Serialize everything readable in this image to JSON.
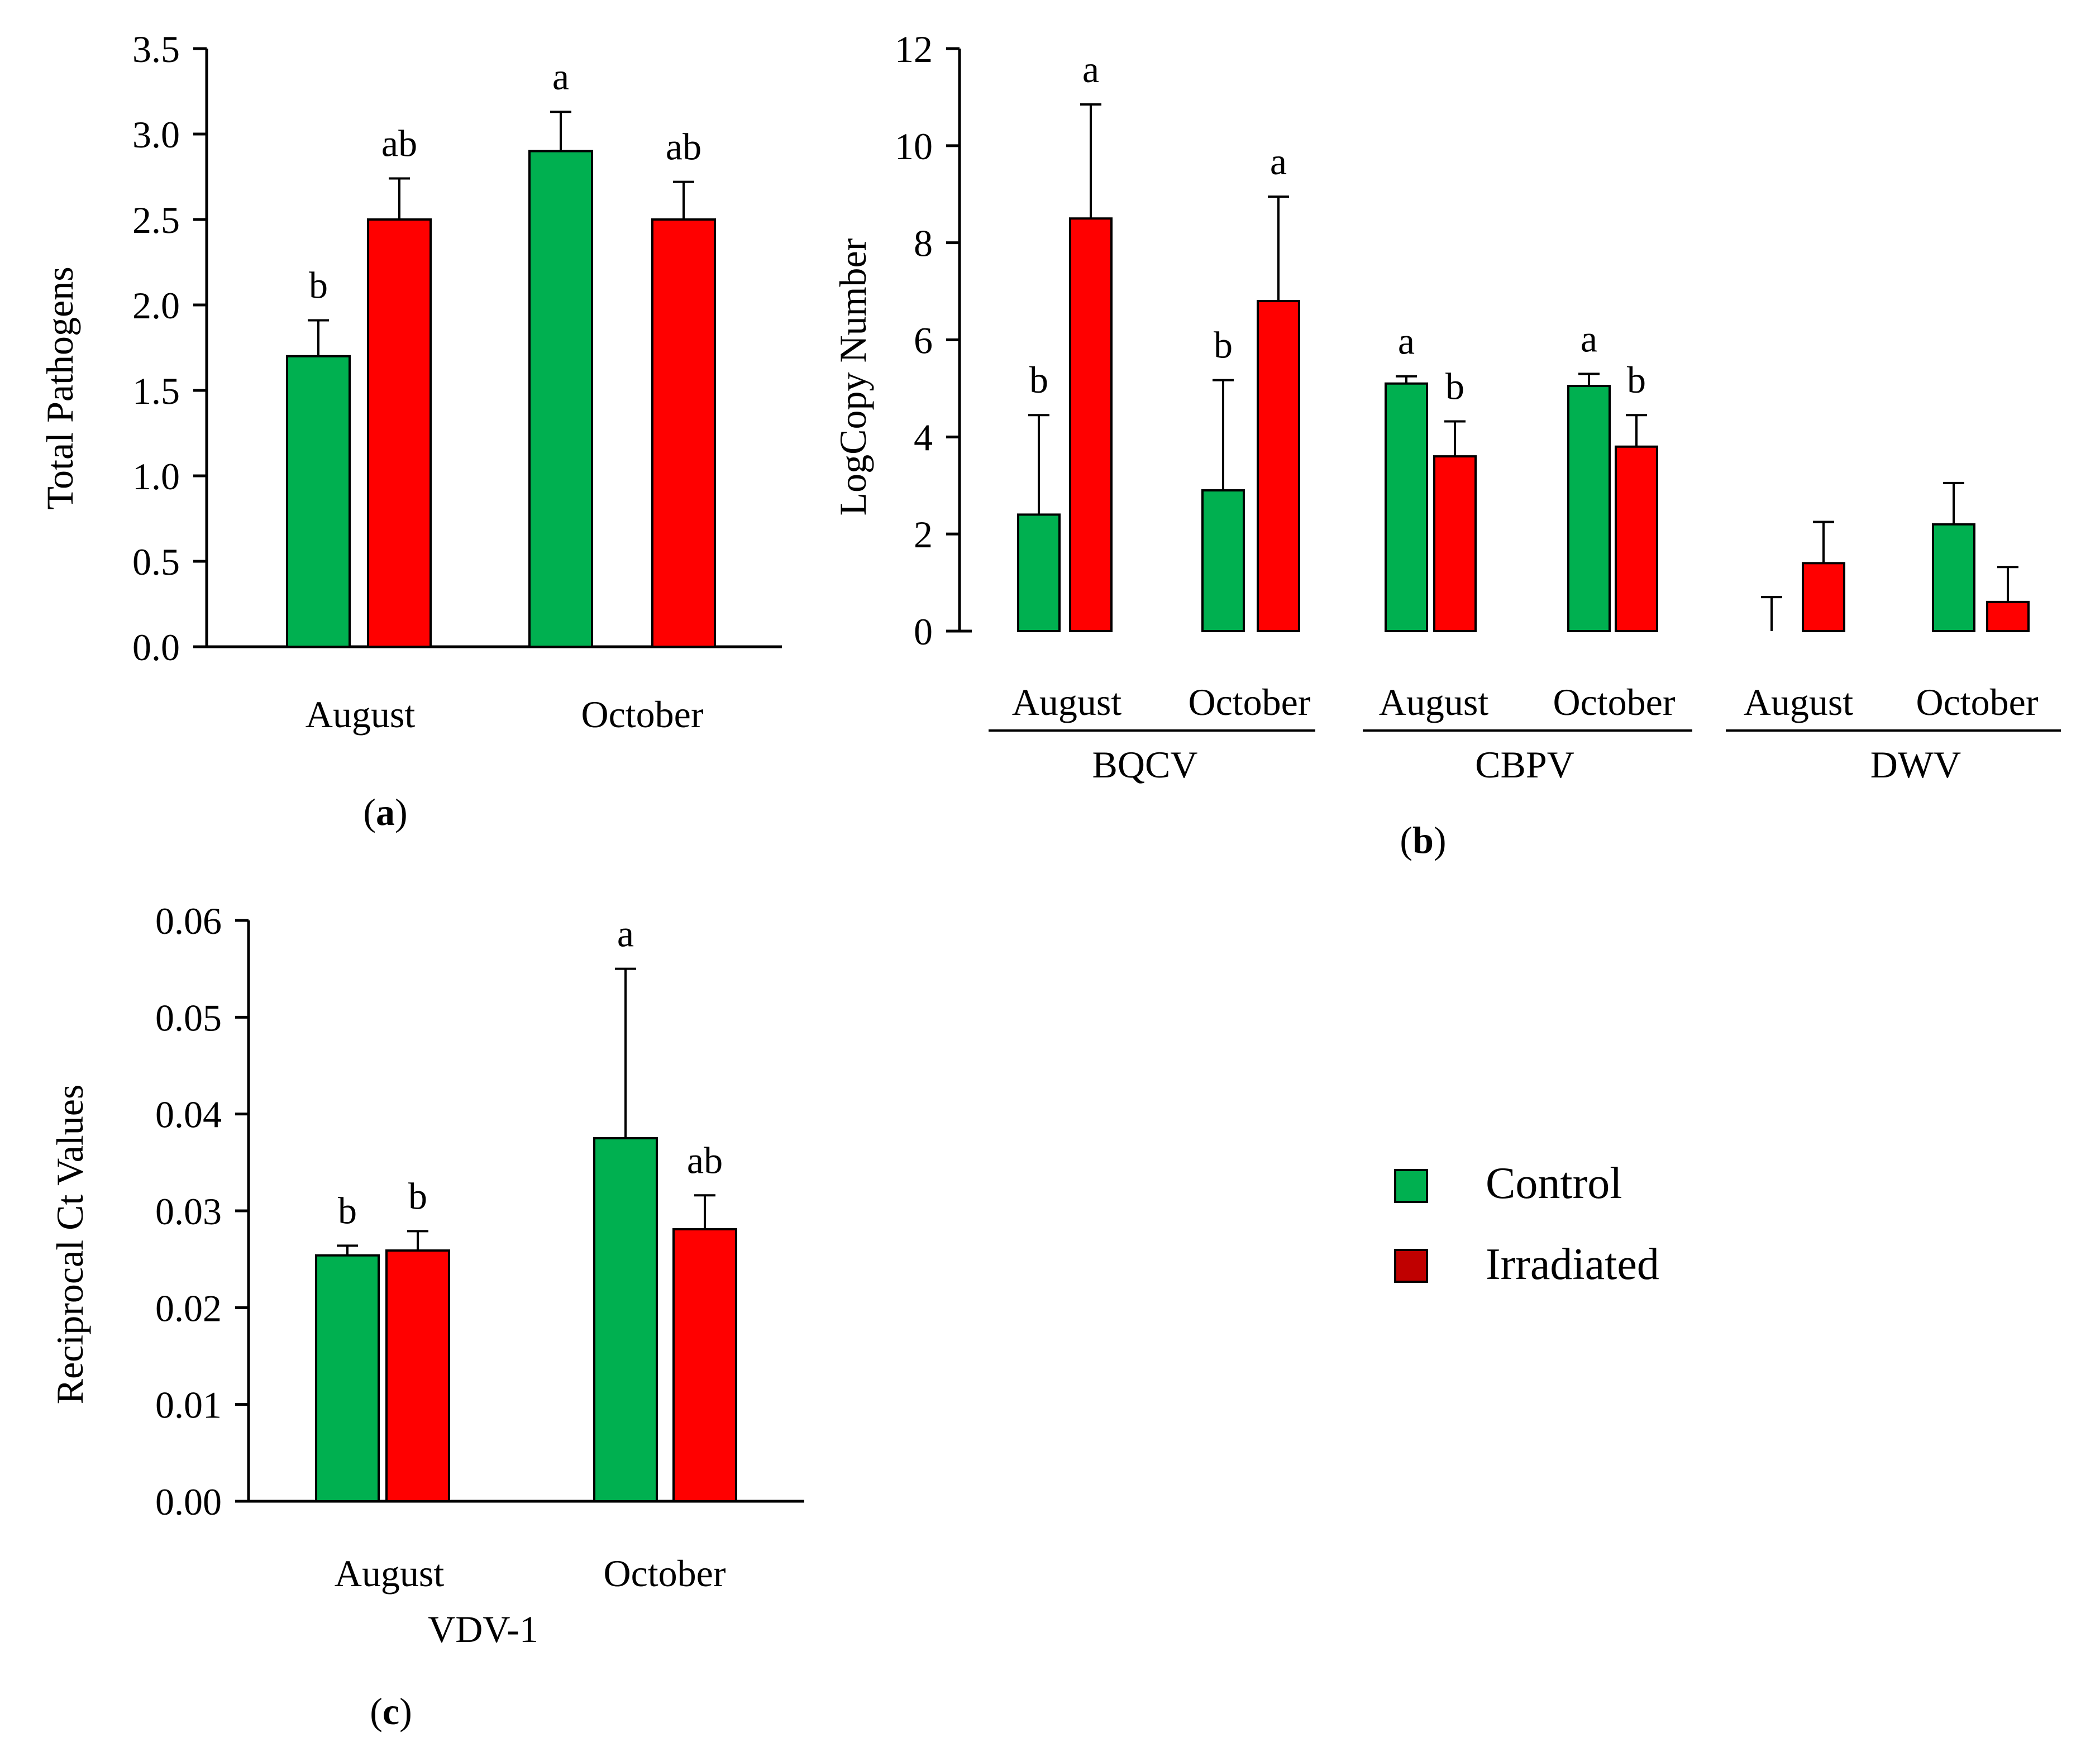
{
  "colors": {
    "control": "#00b050",
    "irradiated": "#ff0000",
    "legend_irradiated": "#c00000",
    "axis": "#000000"
  },
  "legend": {
    "control": "Control",
    "irradiated": "Irradiated"
  },
  "chart_data": [
    {
      "id": "a",
      "type": "bar",
      "panel_label": "a",
      "title": "",
      "xlabel": "",
      "ylabel": "Total Pathogens",
      "ylim": [
        0,
        3.5
      ],
      "yticks": [
        "0.0",
        "0.5",
        "1.0",
        "1.5",
        "2.0",
        "2.5",
        "3.0",
        "3.5"
      ],
      "categories": [
        "August",
        "October"
      ],
      "series": [
        {
          "name": "Control",
          "values": [
            1.7,
            2.9
          ],
          "errors": [
            0.21,
            0.23
          ],
          "letters": [
            "b",
            "a"
          ]
        },
        {
          "name": "Irradiated",
          "values": [
            2.5,
            2.5
          ],
          "errors": [
            0.24,
            0.22
          ],
          "letters": [
            "ab",
            "ab"
          ]
        }
      ]
    },
    {
      "id": "b",
      "type": "bar",
      "panel_label": "b",
      "title": "",
      "xlabel": "",
      "ylabel": "LogCopy Number",
      "ylim": [
        0,
        12
      ],
      "yticks": [
        "0",
        "2",
        "4",
        "6",
        "8",
        "10",
        "12"
      ],
      "groups": [
        {
          "label": "BQCV",
          "categories": [
            "August",
            "October"
          ]
        },
        {
          "label": "CBPV",
          "categories": [
            "August",
            "October"
          ]
        },
        {
          "label": "DWV",
          "categories": [
            "August",
            "October"
          ]
        }
      ],
      "series": [
        {
          "name": "Control",
          "values": [
            2.4,
            2.9,
            5.1,
            5.05,
            0.0,
            2.2
          ],
          "errors": [
            2.05,
            2.27,
            0.15,
            0.25,
            0.7,
            0.85
          ],
          "letters": [
            "b",
            "b",
            "a",
            "a",
            "",
            ""
          ]
        },
        {
          "name": "Irradiated",
          "values": [
            8.5,
            6.8,
            3.6,
            3.8,
            1.4,
            0.6
          ],
          "errors": [
            2.35,
            2.15,
            0.72,
            0.65,
            0.85,
            0.72
          ],
          "letters": [
            "a",
            "a",
            "b",
            "b",
            "",
            ""
          ]
        }
      ]
    },
    {
      "id": "c",
      "type": "bar",
      "panel_label": "c",
      "title": "",
      "xlabel": "VDV-1",
      "ylabel": "Reciprocal Ct Values",
      "ylim": [
        0,
        0.06
      ],
      "yticks": [
        "0.00",
        "0.01",
        "0.02",
        "0.03",
        "0.04",
        "0.05",
        "0.06"
      ],
      "categories": [
        "August",
        "October"
      ],
      "series": [
        {
          "name": "Control",
          "values": [
            0.0254,
            0.0375
          ],
          "errors": [
            0.001,
            0.0175
          ],
          "letters": [
            "b",
            "a"
          ]
        },
        {
          "name": "Irradiated",
          "values": [
            0.0259,
            0.0281
          ],
          "errors": [
            0.002,
            0.0035
          ],
          "letters": [
            "b",
            "ab"
          ]
        }
      ]
    }
  ]
}
